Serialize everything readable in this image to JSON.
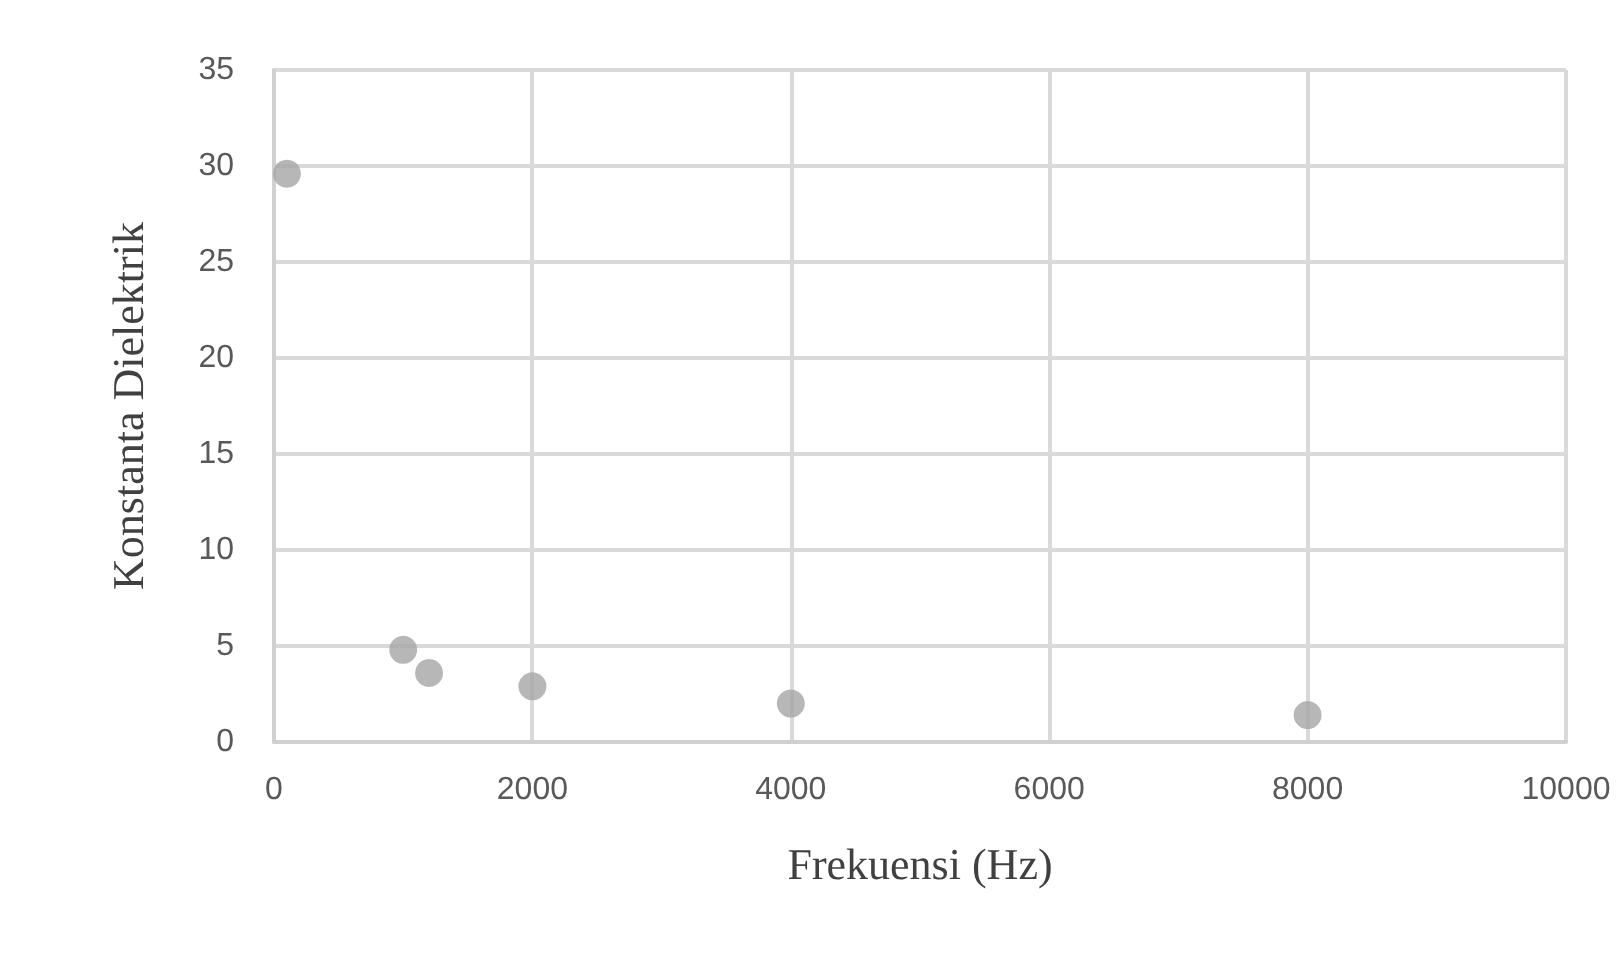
{
  "chart_data": {
    "type": "scatter",
    "xlabel": "Frekuensi (Hz)",
    "ylabel": "Konstanta Dielektrik",
    "x": [
      100,
      1000,
      1200,
      2000,
      4000,
      8000
    ],
    "series": [
      {
        "color": "#a5a5a5",
        "values": [
          29.6,
          4.8,
          3.6,
          2.9,
          2.0,
          1.4
        ]
      }
    ],
    "xlim": [
      0,
      10000
    ],
    "xticks": [
      0,
      2000,
      4000,
      6000,
      8000,
      10000
    ],
    "ylim": [
      0,
      35
    ],
    "yticks": [
      0,
      5,
      10,
      15,
      20,
      25,
      30,
      35
    ],
    "grid": true,
    "marker": "circle"
  }
}
